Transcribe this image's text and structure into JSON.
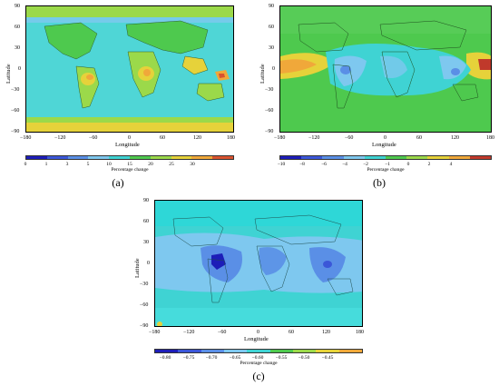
{
  "chart_data": [
    {
      "type": "heatmap",
      "panel_label": "(a)",
      "xlabel": "Longitude",
      "ylabel": "Latitude",
      "x_ticks": [
        "−180",
        "−120",
        "−60",
        "0",
        "60",
        "120",
        "180"
      ],
      "y_ticks": [
        "90",
        "60",
        "30",
        "0",
        "−30",
        "−60",
        "−90"
      ],
      "xlim": [
        -180,
        180
      ],
      "ylim": [
        -90,
        90
      ],
      "colorbar_label": "Percentage change",
      "colorbar_ticks": [
        "0",
        "1",
        "3",
        "5",
        "10",
        "15",
        "20",
        "25",
        "30"
      ],
      "colorbar_colors": [
        "#1d1db8",
        "#3b57d8",
        "#5a8fe6",
        "#7ec8ef",
        "#3fd3d3",
        "#4ec94e",
        "#9bd94a",
        "#e6d23a",
        "#f0a83a",
        "#d9532f"
      ]
    },
    {
      "type": "heatmap",
      "panel_label": "(b)",
      "xlabel": "Longitude",
      "ylabel": "Latitude",
      "x_ticks": [
        "−180",
        "−120",
        "−60",
        "0",
        "60",
        "120",
        "180"
      ],
      "y_ticks": [
        "90",
        "60",
        "30",
        "0",
        "−30",
        "−60",
        "−90"
      ],
      "xlim": [
        -180,
        180
      ],
      "ylim": [
        -90,
        90
      ],
      "colorbar_label": "Percentage change",
      "colorbar_ticks": [
        "−10",
        "−8",
        "−6",
        "−4",
        "−2",
        "−1",
        "0",
        "2",
        "4"
      ],
      "colorbar_colors": [
        "#1d1db8",
        "#3b57d8",
        "#5a8fe6",
        "#7ec8ef",
        "#3fd3d3",
        "#4ec94e",
        "#9bd94a",
        "#e6d23a",
        "#f0a83a",
        "#c0392b"
      ]
    },
    {
      "type": "heatmap",
      "panel_label": "(c)",
      "xlabel": "Longitude",
      "ylabel": "Latitude",
      "x_ticks": [
        "−180",
        "−120",
        "−60",
        "0",
        "60",
        "120",
        "180"
      ],
      "y_ticks": [
        "90",
        "60",
        "30",
        "0",
        "−30",
        "−60",
        "−90"
      ],
      "xlim": [
        -180,
        180
      ],
      "ylim": [
        -90,
        90
      ],
      "colorbar_label": "Percentage change",
      "colorbar_ticks": [
        "−0.80",
        "−0.75",
        "−0.70",
        "−0.65",
        "−0.60",
        "−0.55",
        "−0.50",
        "−0.45"
      ],
      "colorbar_colors": [
        "#1d1db8",
        "#3b57d8",
        "#5a8fe6",
        "#7ec8ef",
        "#3fd3d3",
        "#4ec94e",
        "#9bd94a",
        "#e6d23a",
        "#f0a83a"
      ]
    }
  ]
}
